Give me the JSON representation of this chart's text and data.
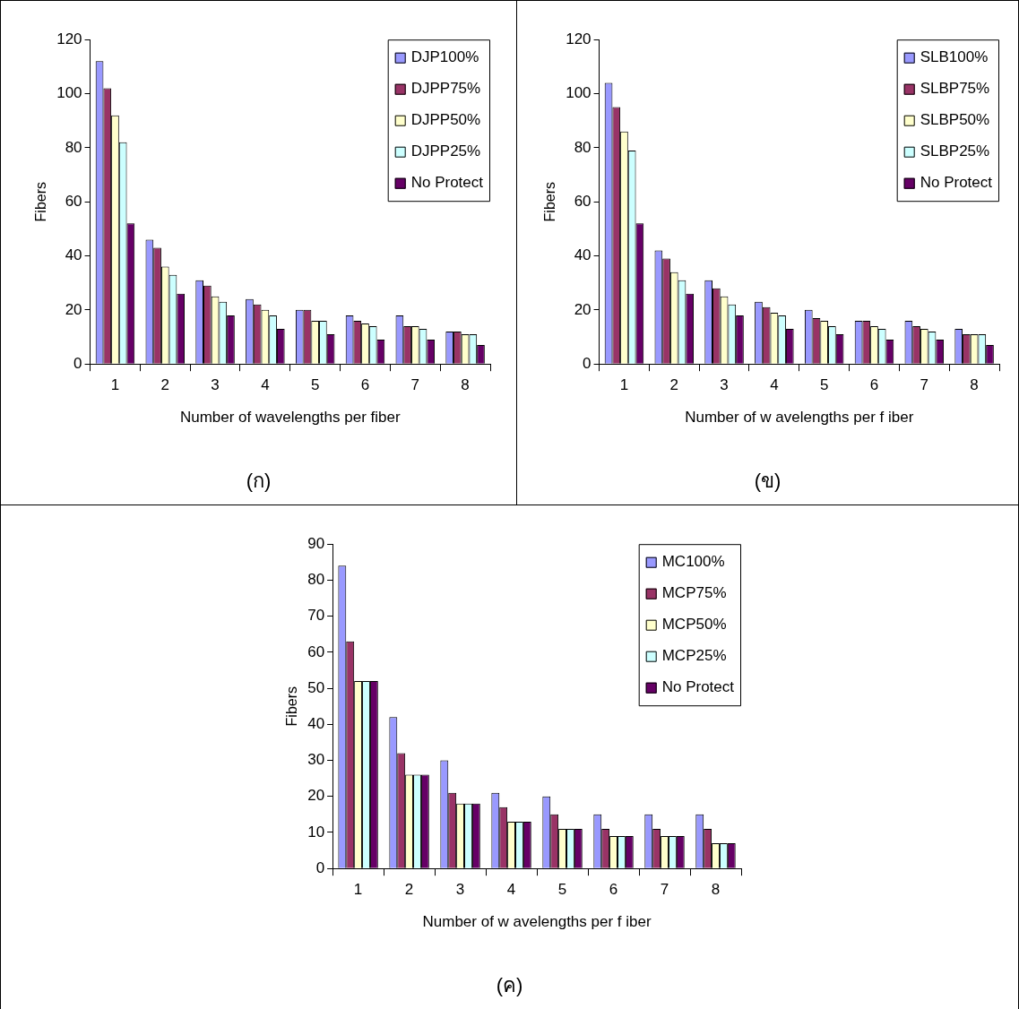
{
  "chart_data": [
    {
      "type": "bar",
      "xlabel": "Number of wavelengths per fiber",
      "ylabel": "Fibers",
      "categories": [
        "1",
        "2",
        "3",
        "4",
        "5",
        "6",
        "7",
        "8"
      ],
      "ylim": [
        0,
        120
      ],
      "yticks": [
        0,
        20,
        40,
        60,
        80,
        100,
        120
      ],
      "grid": false,
      "legend": "top right",
      "annotations": [
        "(ก)"
      ],
      "series": [
        {
          "name": "DJP100%",
          "color": "#9999ff",
          "values": [
            112,
            46,
            31,
            24,
            20,
            18,
            18,
            12
          ]
        },
        {
          "name": "DJPP75%",
          "color": "#993366",
          "values": [
            102,
            43,
            29,
            22,
            20,
            16,
            14,
            12
          ]
        },
        {
          "name": "DJPP50%",
          "color": "#ffffcc",
          "values": [
            92,
            36,
            25,
            20,
            16,
            15,
            14,
            11
          ]
        },
        {
          "name": "DJPP25%",
          "color": "#ccffff",
          "values": [
            82,
            33,
            23,
            18,
            16,
            14,
            13,
            11
          ]
        },
        {
          "name": "No Protect",
          "color": "#660066",
          "values": [
            52,
            26,
            18,
            13,
            11,
            9,
            9,
            7
          ]
        }
      ]
    },
    {
      "type": "bar",
      "xlabel": "Number of w avelengths per f iber",
      "ylabel": "Fibers",
      "categories": [
        "1",
        "2",
        "3",
        "4",
        "5",
        "6",
        "7",
        "8"
      ],
      "ylim": [
        0,
        120
      ],
      "yticks": [
        0,
        20,
        40,
        60,
        80,
        100,
        120
      ],
      "grid": false,
      "legend": "top right",
      "annotations": [
        "(ข)"
      ],
      "series": [
        {
          "name": "SLB100%",
          "color": "#9999ff",
          "values": [
            104,
            42,
            31,
            23,
            20,
            16,
            16,
            13
          ]
        },
        {
          "name": "SLBP75%",
          "color": "#993366",
          "values": [
            95,
            39,
            28,
            21,
            17,
            16,
            14,
            11
          ]
        },
        {
          "name": "SLBP50%",
          "color": "#ffffcc",
          "values": [
            86,
            34,
            25,
            19,
            16,
            14,
            13,
            11
          ]
        },
        {
          "name": "SLBP25%",
          "color": "#ccffff",
          "values": [
            79,
            31,
            22,
            18,
            14,
            13,
            12,
            11
          ]
        },
        {
          "name": "No Protect",
          "color": "#660066",
          "values": [
            52,
            26,
            18,
            13,
            11,
            9,
            9,
            7
          ]
        }
      ]
    },
    {
      "type": "bar",
      "xlabel": "Number of w avelengths per f iber",
      "ylabel": "Fibers",
      "categories": [
        "1",
        "2",
        "3",
        "4",
        "5",
        "6",
        "7",
        "8"
      ],
      "ylim": [
        0,
        90
      ],
      "yticks": [
        0,
        10,
        20,
        30,
        40,
        50,
        60,
        70,
        80,
        90
      ],
      "grid": false,
      "legend": "top right",
      "annotations": [
        "(ค)"
      ],
      "series": [
        {
          "name": "MC100%",
          "color": "#9999ff",
          "values": [
            84,
            42,
            30,
            21,
            20,
            15,
            15,
            15
          ]
        },
        {
          "name": "MCP75%",
          "color": "#993366",
          "values": [
            63,
            32,
            21,
            17,
            15,
            11,
            11,
            11
          ]
        },
        {
          "name": "MCP50%",
          "color": "#ffffcc",
          "values": [
            52,
            26,
            18,
            13,
            11,
            9,
            9,
            7
          ]
        },
        {
          "name": "MCP25%",
          "color": "#ccffff",
          "values": [
            52,
            26,
            18,
            13,
            11,
            9,
            9,
            7
          ]
        },
        {
          "name": "No Protect",
          "color": "#660066",
          "values": [
            52,
            26,
            18,
            13,
            11,
            9,
            9,
            7
          ]
        }
      ]
    }
  ]
}
